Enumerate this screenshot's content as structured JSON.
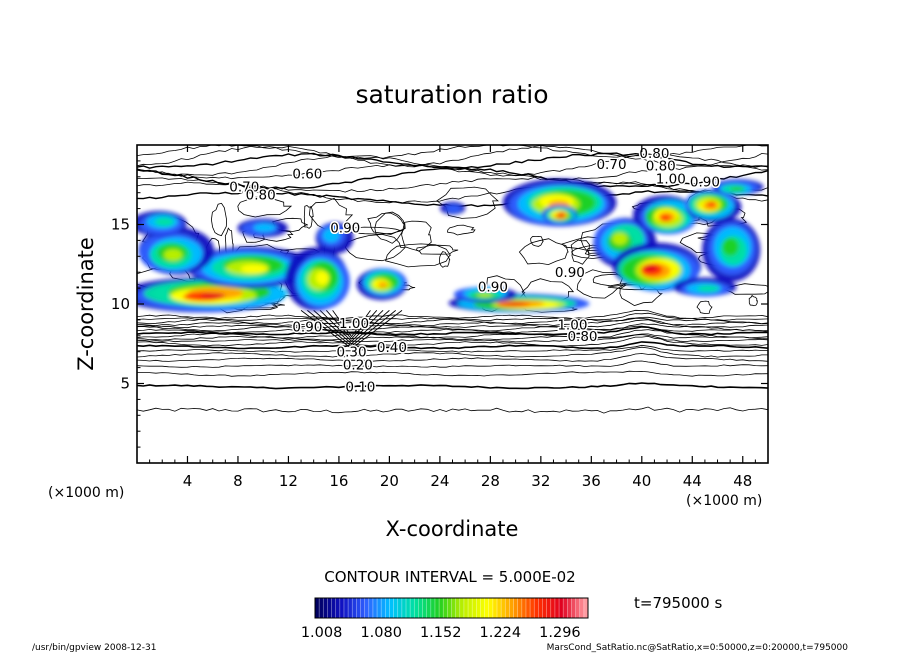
{
  "chart_data": {
    "type": "heatmap",
    "title": "saturation ratio",
    "xlabel": "X-coordinate",
    "ylabel": "Z-coordinate",
    "x_unit": "(×1000 m)",
    "z_unit": "(×1000 m)",
    "xlim": [
      0,
      50
    ],
    "ylim": [
      0,
      20
    ],
    "x_ticks": [
      4,
      8,
      12,
      16,
      20,
      24,
      28,
      32,
      36,
      40,
      44,
      48
    ],
    "y_ticks": [
      5,
      10,
      15
    ],
    "contour_interval_text": "CONTOUR INTERVAL = 5.000E-02",
    "time_text": "t=795000 s",
    "colorbar": {
      "ticks": [
        "1.008",
        "1.080",
        "1.152",
        "1.224",
        "1.296"
      ],
      "range": [
        1.0,
        1.33
      ],
      "colors": [
        "#000060",
        "#1010c0",
        "#2f60ff",
        "#00c0ff",
        "#00e0a0",
        "#20d020",
        "#c0f000",
        "#ffff00",
        "#ffa000",
        "#ff3000",
        "#e00020",
        "#ff9aa0"
      ]
    },
    "contour_labels": [
      {
        "text": "0.80",
        "x": 41.0,
        "z": 19.5
      },
      {
        "text": "0.70",
        "x": 37.6,
        "z": 18.8
      },
      {
        "text": "0.80",
        "x": 41.5,
        "z": 18.7
      },
      {
        "text": "1.00",
        "x": 42.3,
        "z": 17.9
      },
      {
        "text": "0.90",
        "x": 45.0,
        "z": 17.7
      },
      {
        "text": "0.60",
        "x": 13.5,
        "z": 18.2
      },
      {
        "text": "0.70",
        "x": 8.5,
        "z": 17.4
      },
      {
        "text": "0.80",
        "x": 9.8,
        "z": 16.9
      },
      {
        "text": "0.90",
        "x": 16.5,
        "z": 14.8
      },
      {
        "text": "0.90",
        "x": 28.2,
        "z": 11.1
      },
      {
        "text": "0.90",
        "x": 34.3,
        "z": 12.0
      },
      {
        "text": "0.90",
        "x": 13.5,
        "z": 8.6
      },
      {
        "text": "1.00",
        "x": 17.2,
        "z": 8.8
      },
      {
        "text": "0.40",
        "x": 20.2,
        "z": 7.3
      },
      {
        "text": "1.00",
        "x": 34.5,
        "z": 8.7
      },
      {
        "text": "0.80",
        "x": 35.3,
        "z": 8.0
      },
      {
        "text": "0.30",
        "x": 17.0,
        "z": 7.0
      },
      {
        "text": "0.20",
        "x": 17.5,
        "z": 6.2
      },
      {
        "text": "0.10",
        "x": 17.7,
        "z": 4.8
      }
    ]
  },
  "footer": {
    "left": "/usr/bin/gpview   2008-12-31",
    "right": "MarsCond_SatRatio.nc@SatRatio,x=0:50000,z=0:20000,t=795000"
  }
}
